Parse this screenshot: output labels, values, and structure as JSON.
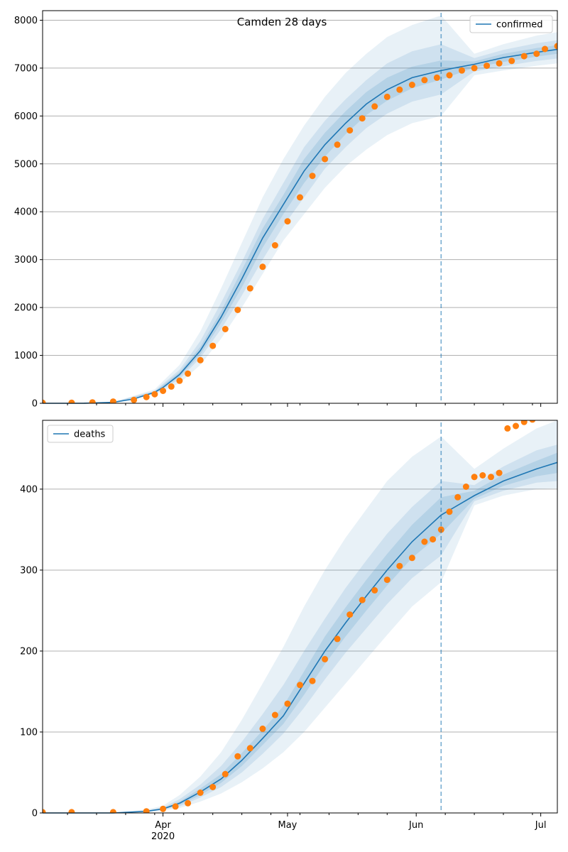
{
  "figure": {
    "title": "Camden 28 days"
  },
  "chart_data": [
    {
      "type": "line",
      "title": "Camden 28 days",
      "xlabel": "",
      "ylabel": "",
      "x_range": [
        "2020-03-03",
        "2020-07-05"
      ],
      "ylim": [
        0,
        8200
      ],
      "y_ticks": [
        0,
        1000,
        2000,
        3000,
        4000,
        5000,
        6000,
        7000,
        8000
      ],
      "grid": "horizontal",
      "legend": {
        "position": "top-right",
        "entries": [
          "confirmed"
        ]
      },
      "forecast_start": "2020-06-07",
      "model_series": {
        "name": "confirmed",
        "type": "line",
        "dates": [
          "2020-03-03",
          "2020-03-13",
          "2020-03-20",
          "2020-03-25",
          "2020-03-30",
          "2020-04-01",
          "2020-04-05",
          "2020-04-10",
          "2020-04-15",
          "2020-04-20",
          "2020-04-25",
          "2020-04-30",
          "2020-05-05",
          "2020-05-10",
          "2020-05-15",
          "2020-05-20",
          "2020-05-25",
          "2020-05-31",
          "2020-06-07",
          "2020-06-15",
          "2020-06-22",
          "2020-06-30",
          "2020-07-05"
        ],
        "values": [
          0,
          2,
          20,
          90,
          230,
          330,
          600,
          1100,
          1800,
          2600,
          3450,
          4150,
          4850,
          5400,
          5850,
          6250,
          6550,
          6800,
          6950,
          7080,
          7220,
          7330,
          7390
        ]
      },
      "bands": [
        {
          "level": "outer",
          "dates": [
            "2020-03-03",
            "2020-03-20",
            "2020-03-30",
            "2020-04-05",
            "2020-04-10",
            "2020-04-15",
            "2020-04-20",
            "2020-04-25",
            "2020-04-30",
            "2020-05-05",
            "2020-05-10",
            "2020-05-15",
            "2020-05-20",
            "2020-05-25",
            "2020-05-31",
            "2020-06-07",
            "2020-06-15",
            "2020-06-22",
            "2020-06-30",
            "2020-07-05"
          ],
          "lower": [
            0,
            15,
            180,
            420,
            800,
            1350,
            2000,
            2700,
            3400,
            3950,
            4500,
            4950,
            5300,
            5600,
            5850,
            6000,
            6850,
            6950,
            7050,
            7100
          ],
          "upper": [
            0,
            25,
            290,
            800,
            1500,
            2400,
            3350,
            4300,
            5100,
            5800,
            6400,
            6900,
            7300,
            7650,
            7900,
            8100,
            7300,
            7500,
            7680,
            7750
          ]
        },
        {
          "level": "middle",
          "dates": [
            "2020-03-03",
            "2020-03-20",
            "2020-03-30",
            "2020-04-05",
            "2020-04-10",
            "2020-04-15",
            "2020-04-20",
            "2020-04-25",
            "2020-04-30",
            "2020-05-05",
            "2020-05-10",
            "2020-05-15",
            "2020-05-20",
            "2020-05-25",
            "2020-05-31",
            "2020-06-07",
            "2020-06-15",
            "2020-06-22",
            "2020-06-30",
            "2020-07-05"
          ],
          "lower": [
            0,
            17,
            200,
            500,
            950,
            1550,
            2250,
            3000,
            3700,
            4300,
            4900,
            5350,
            5750,
            6050,
            6300,
            6450,
            6930,
            7040,
            7150,
            7200
          ],
          "upper": [
            0,
            23,
            260,
            700,
            1300,
            2100,
            2950,
            3850,
            4600,
            5350,
            5900,
            6350,
            6750,
            7100,
            7350,
            7500,
            7210,
            7380,
            7520,
            7580
          ]
        },
        {
          "level": "inner",
          "dates": [
            "2020-03-03",
            "2020-03-20",
            "2020-03-30",
            "2020-04-05",
            "2020-04-10",
            "2020-04-15",
            "2020-04-20",
            "2020-04-25",
            "2020-04-30",
            "2020-05-05",
            "2020-05-10",
            "2020-05-15",
            "2020-05-20",
            "2020-05-25",
            "2020-05-31",
            "2020-06-07",
            "2020-06-15",
            "2020-06-22",
            "2020-06-30",
            "2020-07-05"
          ],
          "lower": [
            0,
            19,
            215,
            550,
            1020,
            1680,
            2420,
            3250,
            3950,
            4600,
            5150,
            5620,
            6020,
            6320,
            6580,
            6760,
            7010,
            7130,
            7240,
            7300
          ],
          "upper": [
            0,
            21,
            245,
            650,
            1180,
            1920,
            2780,
            3650,
            4350,
            5100,
            5650,
            6100,
            6500,
            6800,
            7030,
            7160,
            7140,
            7300,
            7420,
            7480
          ]
        }
      ],
      "observed_series": {
        "name": "observed",
        "type": "scatter",
        "dates": [
          "2020-03-03",
          "2020-03-10",
          "2020-03-15",
          "2020-03-20",
          "2020-03-25",
          "2020-03-28",
          "2020-03-30",
          "2020-04-01",
          "2020-04-03",
          "2020-04-05",
          "2020-04-07",
          "2020-04-10",
          "2020-04-13",
          "2020-04-16",
          "2020-04-19",
          "2020-04-22",
          "2020-04-25",
          "2020-04-28",
          "2020-05-01",
          "2020-05-04",
          "2020-05-07",
          "2020-05-10",
          "2020-05-13",
          "2020-05-16",
          "2020-05-19",
          "2020-05-22",
          "2020-05-25",
          "2020-05-28",
          "2020-05-31",
          "2020-06-03",
          "2020-06-06",
          "2020-06-09",
          "2020-06-12",
          "2020-06-15",
          "2020-06-18",
          "2020-06-21",
          "2020-06-24",
          "2020-06-27",
          "2020-06-30",
          "2020-07-02",
          "2020-07-05"
        ],
        "values": [
          10,
          12,
          20,
          35,
          70,
          130,
          190,
          260,
          350,
          470,
          620,
          900,
          1200,
          1550,
          1950,
          2400,
          2850,
          3300,
          3800,
          4300,
          4750,
          5100,
          5400,
          5700,
          5950,
          6200,
          6400,
          6550,
          6650,
          6750,
          6800,
          6850,
          6950,
          7000,
          7050,
          7100,
          7150,
          7250,
          7300,
          7400,
          7460
        ]
      }
    },
    {
      "type": "line",
      "title": "",
      "xlabel": "",
      "ylabel": "",
      "x_range": [
        "2020-03-03",
        "2020-07-05"
      ],
      "x_ticks": [
        "Apr",
        "May",
        "Jun",
        "Jul"
      ],
      "x_year_label": "2020",
      "ylim": [
        0,
        485
      ],
      "y_ticks": [
        0,
        100,
        200,
        300,
        400
      ],
      "grid": "horizontal",
      "legend": {
        "position": "top-left",
        "entries": [
          "deaths"
        ]
      },
      "forecast_start": "2020-06-07",
      "model_series": {
        "name": "deaths",
        "type": "line",
        "dates": [
          "2020-03-03",
          "2020-03-20",
          "2020-03-28",
          "2020-04-01",
          "2020-04-05",
          "2020-04-10",
          "2020-04-15",
          "2020-04-20",
          "2020-04-25",
          "2020-04-30",
          "2020-05-05",
          "2020-05-10",
          "2020-05-15",
          "2020-05-20",
          "2020-05-25",
          "2020-05-31",
          "2020-06-07",
          "2020-06-15",
          "2020-06-22",
          "2020-06-30",
          "2020-07-05"
        ],
        "values": [
          0,
          0,
          2,
          5,
          12,
          26,
          42,
          65,
          92,
          120,
          160,
          200,
          235,
          268,
          300,
          335,
          368,
          392,
          410,
          425,
          433
        ]
      },
      "bands": [
        {
          "level": "outer",
          "dates": [
            "2020-03-03",
            "2020-03-20",
            "2020-03-28",
            "2020-04-01",
            "2020-04-05",
            "2020-04-10",
            "2020-04-15",
            "2020-04-20",
            "2020-04-25",
            "2020-04-30",
            "2020-05-05",
            "2020-05-10",
            "2020-05-15",
            "2020-05-20",
            "2020-05-25",
            "2020-05-31",
            "2020-06-07",
            "2020-06-15",
            "2020-06-22",
            "2020-06-30",
            "2020-07-05"
          ],
          "lower": [
            0,
            0,
            1,
            3,
            6,
            14,
            24,
            38,
            55,
            75,
            100,
            130,
            160,
            190,
            220,
            255,
            285,
            380,
            392,
            400,
            401
          ],
          "upper": [
            0,
            0,
            4,
            9,
            22,
            45,
            75,
            115,
            160,
            205,
            255,
            300,
            340,
            375,
            410,
            440,
            465,
            425,
            450,
            475,
            485
          ]
        },
        {
          "level": "middle",
          "dates": [
            "2020-03-03",
            "2020-03-20",
            "2020-03-28",
            "2020-04-01",
            "2020-04-05",
            "2020-04-10",
            "2020-04-15",
            "2020-04-20",
            "2020-04-25",
            "2020-04-30",
            "2020-05-05",
            "2020-05-10",
            "2020-05-15",
            "2020-05-20",
            "2020-05-25",
            "2020-05-31",
            "2020-06-07",
            "2020-06-15",
            "2020-06-22",
            "2020-06-30",
            "2020-07-05"
          ],
          "lower": [
            0,
            0,
            1.5,
            4,
            8,
            19,
            32,
            50,
            73,
            98,
            130,
            165,
            198,
            228,
            258,
            290,
            318,
            385,
            398,
            408,
            410
          ],
          "upper": [
            0,
            0,
            3,
            7,
            17,
            35,
            58,
            88,
            122,
            158,
            200,
            240,
            278,
            312,
            345,
            378,
            410,
            405,
            428,
            448,
            455
          ]
        },
        {
          "level": "inner",
          "dates": [
            "2020-03-03",
            "2020-03-20",
            "2020-03-28",
            "2020-04-01",
            "2020-04-05",
            "2020-04-10",
            "2020-04-15",
            "2020-04-20",
            "2020-04-25",
            "2020-04-30",
            "2020-05-05",
            "2020-05-10",
            "2020-05-15",
            "2020-05-20",
            "2020-05-25",
            "2020-05-31",
            "2020-06-07",
            "2020-06-15",
            "2020-06-22",
            "2020-06-30",
            "2020-07-05"
          ],
          "lower": [
            0,
            0,
            1.8,
            4.5,
            10,
            22,
            37,
            58,
            84,
            110,
            146,
            184,
            218,
            250,
            281,
            315,
            345,
            388,
            404,
            416,
            420
          ],
          "upper": [
            0,
            0,
            2.5,
            6,
            14,
            30,
            48,
            74,
            102,
            132,
            175,
            218,
            254,
            288,
            320,
            356,
            390,
            398,
            418,
            435,
            445
          ]
        }
      ],
      "observed_series": {
        "name": "observed",
        "type": "scatter",
        "dates": [
          "2020-03-03",
          "2020-03-10",
          "2020-03-20",
          "2020-03-28",
          "2020-04-01",
          "2020-04-04",
          "2020-04-07",
          "2020-04-10",
          "2020-04-13",
          "2020-04-16",
          "2020-04-19",
          "2020-04-22",
          "2020-04-25",
          "2020-04-28",
          "2020-05-01",
          "2020-05-04",
          "2020-05-07",
          "2020-05-10",
          "2020-05-13",
          "2020-05-16",
          "2020-05-19",
          "2020-05-22",
          "2020-05-25",
          "2020-05-28",
          "2020-05-31",
          "2020-06-03",
          "2020-06-05",
          "2020-06-07",
          "2020-06-09",
          "2020-06-11",
          "2020-06-13",
          "2020-06-15",
          "2020-06-17",
          "2020-06-19",
          "2020-06-21",
          "2020-06-23",
          "2020-06-25",
          "2020-06-27",
          "2020-06-29"
        ],
        "values": [
          1,
          1,
          1,
          2,
          5,
          8,
          12,
          25,
          32,
          48,
          70,
          80,
          104,
          121,
          135,
          158,
          163,
          190,
          215,
          245,
          263,
          275,
          288,
          305,
          315,
          335,
          338,
          350,
          372,
          390,
          403,
          415,
          417,
          415,
          420,
          475,
          478,
          483,
          486
        ]
      }
    }
  ]
}
